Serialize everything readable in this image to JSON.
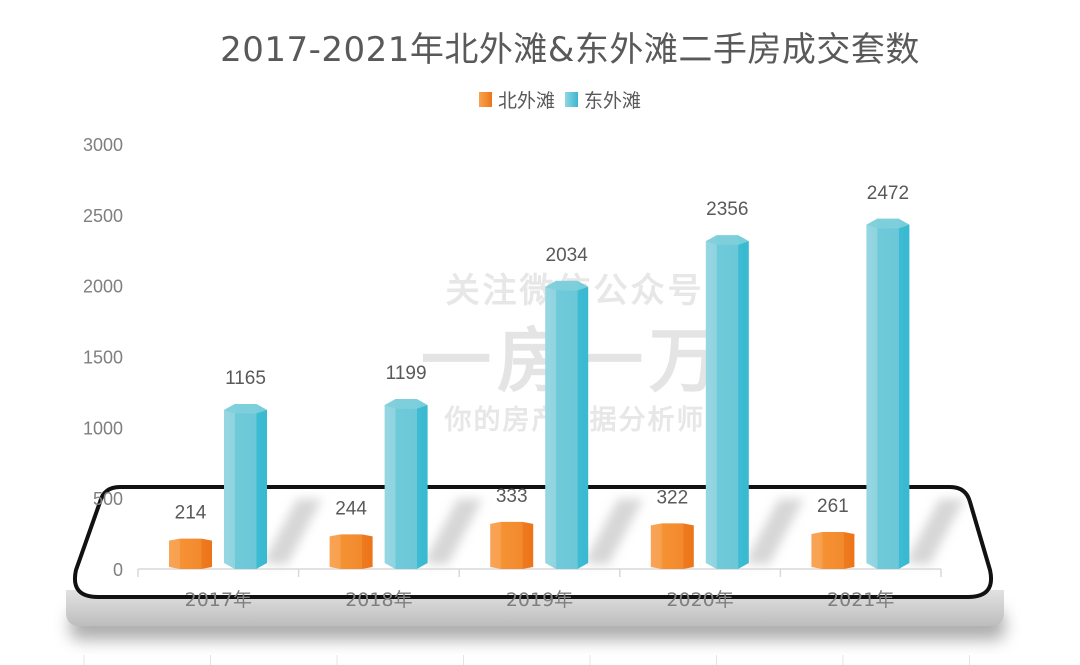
{
  "chart_data": {
    "type": "bar",
    "title": "2017-2021年北外滩&东外滩二手房成交套数",
    "categories": [
      "2017年",
      "2018年",
      "2019年",
      "2020年",
      "2021年"
    ],
    "series": [
      {
        "name": "北外滩",
        "color": "#f28a2e",
        "values": [
          214,
          244,
          333,
          322,
          261
        ]
      },
      {
        "name": "东外滩",
        "color": "#5ec4d6",
        "values": [
          1165,
          1199,
          2034,
          2356,
          2472
        ]
      }
    ],
    "xlabel": "",
    "ylabel": "",
    "ylim": [
      0,
      3000
    ],
    "yticks": [
      0,
      500,
      1000,
      1500,
      2000,
      2500,
      3000
    ],
    "grid": false,
    "legend_position": "top",
    "data_labels": true
  },
  "watermark": {
    "line1": "关注微信公众号",
    "line2": "一房一万",
    "line3": "你的房产数据分析师"
  }
}
